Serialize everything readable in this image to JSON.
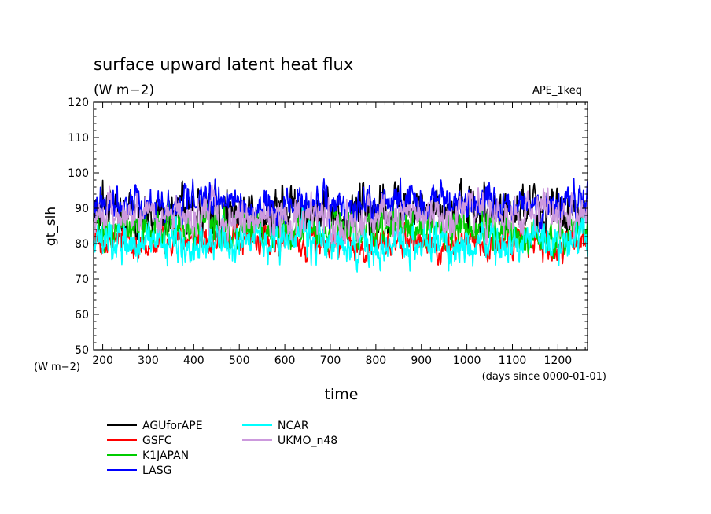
{
  "chart_data": {
    "type": "line",
    "title": "surface upward latent heat flux",
    "subtitle": "(W m−2)",
    "dataset_label": "APE_1keq",
    "xlabel": "time",
    "x_units": "(days since 0000-01-01)",
    "ylabel": "gt_slh",
    "y_units": "(W m−2)",
    "xlim": [
      180,
      1265
    ],
    "ylim": [
      50,
      120
    ],
    "x_ticks": [
      "200",
      "300",
      "400",
      "500",
      "600",
      "700",
      "800",
      "900",
      "1000",
      "1100",
      "1200"
    ],
    "y_ticks": [
      "50",
      "60",
      "70",
      "80",
      "90",
      "100",
      "110",
      "120"
    ],
    "grid": false,
    "legend_position": "bottom-left",
    "series": [
      {
        "name": "AGUforAPE",
        "color": "#000000",
        "mean": 89,
        "amp": 4.5,
        "min": 80,
        "max": 101
      },
      {
        "name": "GSFC",
        "color": "#ff0000",
        "mean": 80,
        "amp": 2.6,
        "min": 74,
        "max": 86
      },
      {
        "name": "K1JAPAN",
        "color": "#00cc00",
        "mean": 84,
        "amp": 3.4,
        "min": 74,
        "max": 95
      },
      {
        "name": "LASG",
        "color": "#0000ff",
        "mean": 91,
        "amp": 3.2,
        "min": 83,
        "max": 100
      },
      {
        "name": "NCAR",
        "color": "#00ffff",
        "mean": 80,
        "amp": 3.6,
        "min": 72,
        "max": 90
      },
      {
        "name": "UKMO_n48",
        "color": "#cc99dd",
        "mean": 88,
        "amp": 3.6,
        "min": 80,
        "max": 100
      }
    ]
  }
}
